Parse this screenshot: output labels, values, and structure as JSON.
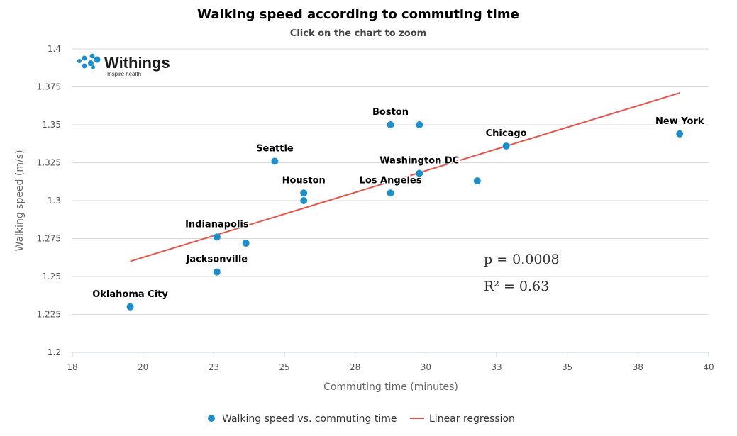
{
  "chart_data": {
    "type": "scatter",
    "title": "Walking speed according to commuting time",
    "subtitle": "Click on the chart to zoom",
    "xlabel": "Commuting time (minutes)",
    "ylabel": "Walking speed (m/s)",
    "xlim": [
      18,
      40
    ],
    "ylim": [
      1.2,
      1.4
    ],
    "x_ticks": [
      "18",
      "20",
      "23",
      "25",
      "28",
      "30",
      "33",
      "35",
      "38",
      "40"
    ],
    "y_ticks": [
      "1.2",
      "1.225",
      "1.25",
      "1.275",
      "1.3",
      "1.325",
      "1.35",
      "1.375",
      "1.4"
    ],
    "grid": true,
    "legend_position": "bottom",
    "series": [
      {
        "name": "Walking speed vs. commuting time",
        "type": "scatter",
        "color": "#1a8fca",
        "points": [
          {
            "x": 20.0,
            "y": 1.23,
            "label": "Oklahoma City"
          },
          {
            "x": 23.0,
            "y": 1.276,
            "label": "Indianapolis"
          },
          {
            "x": 23.0,
            "y": 1.253,
            "label": "Jacksonville"
          },
          {
            "x": 24.0,
            "y": 1.272,
            "label": ""
          },
          {
            "x": 25.0,
            "y": 1.326,
            "label": "Seattle"
          },
          {
            "x": 26.0,
            "y": 1.305,
            "label": "Houston"
          },
          {
            "x": 26.0,
            "y": 1.3,
            "label": ""
          },
          {
            "x": 29.0,
            "y": 1.35,
            "label": "Boston"
          },
          {
            "x": 30.0,
            "y": 1.35,
            "label": ""
          },
          {
            "x": 29.0,
            "y": 1.305,
            "label": "Los Angeles"
          },
          {
            "x": 30.0,
            "y": 1.318,
            "label": "Washington DC"
          },
          {
            "x": 32.0,
            "y": 1.313,
            "label": ""
          },
          {
            "x": 33.0,
            "y": 1.336,
            "label": "Chicago"
          },
          {
            "x": 39.0,
            "y": 1.344,
            "label": "New York"
          }
        ]
      },
      {
        "name": "Linear regression",
        "type": "line",
        "color": "#e8534a",
        "points": [
          {
            "x": 20.0,
            "y": 1.26
          },
          {
            "x": 39.0,
            "y": 1.371
          }
        ]
      }
    ],
    "annotations": [
      "p = 0.0008",
      "R² = 0.63"
    ]
  },
  "logo": {
    "name": "Withings",
    "tagline": "Inspire health"
  }
}
